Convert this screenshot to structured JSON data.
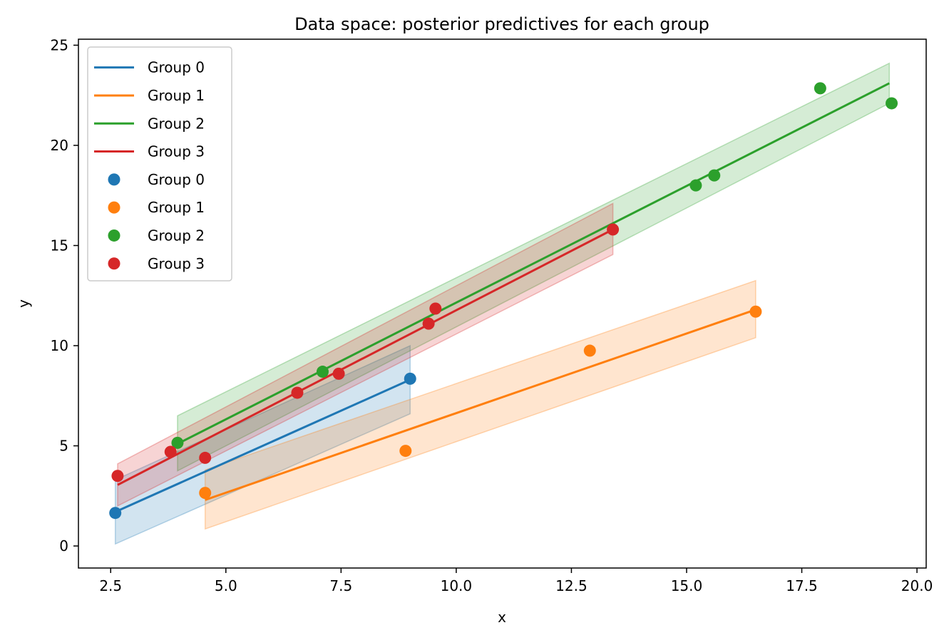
{
  "chart_data": {
    "type": "line",
    "title": "Data space: posterior predictives for each group",
    "xlabel": "x",
    "ylabel": "y",
    "xlim": [
      1.8,
      20.2
    ],
    "ylim": [
      -1.1,
      25.3
    ],
    "xticks": [
      "2.5",
      "5.0",
      "7.5",
      "10.0",
      "12.5",
      "15.0",
      "17.5",
      "20.0"
    ],
    "xtick_values": [
      2.5,
      5.0,
      7.5,
      10.0,
      12.5,
      15.0,
      17.5,
      20.0
    ],
    "yticks": [
      "0",
      "5",
      "10",
      "15",
      "20",
      "25"
    ],
    "ytick_values": [
      0,
      5,
      10,
      15,
      20,
      25
    ],
    "grid": false,
    "legend_position": "top-left",
    "legend": [
      "Group 0",
      "Group 1",
      "Group 2",
      "Group 3",
      "Group 0",
      "Group 1",
      "Group 2",
      "Group 3"
    ],
    "series": [
      {
        "name": "Group 0",
        "color": "#1f77b4",
        "line": {
          "x": [
            2.6,
            9.0
          ],
          "y": [
            1.7,
            8.3
          ]
        },
        "band": {
          "x": [
            2.6,
            9.0
          ],
          "lower": [
            0.1,
            6.6
          ],
          "upper": [
            3.3,
            10.0
          ]
        },
        "points": {
          "x": [
            2.6,
            9.0
          ],
          "y": [
            1.65,
            8.35
          ]
        }
      },
      {
        "name": "Group 1",
        "color": "#ff7f0e",
        "line": {
          "x": [
            4.55,
            16.5
          ],
          "y": [
            2.3,
            11.8
          ]
        },
        "band": {
          "x": [
            4.55,
            16.5
          ],
          "lower": [
            0.85,
            10.4
          ],
          "upper": [
            3.8,
            13.25
          ]
        },
        "points": {
          "x": [
            4.55,
            8.9,
            12.9,
            16.5
          ],
          "y": [
            2.65,
            4.75,
            9.75,
            11.7
          ]
        }
      },
      {
        "name": "Group 2",
        "color": "#2ca02c",
        "line": {
          "x": [
            3.95,
            19.4
          ],
          "y": [
            5.1,
            23.1
          ]
        },
        "band": {
          "x": [
            3.95,
            19.4
          ],
          "lower": [
            3.75,
            22.1
          ],
          "upper": [
            6.5,
            24.1
          ]
        },
        "points": {
          "x": [
            3.95,
            7.1,
            15.2,
            15.6,
            17.9,
            19.45
          ],
          "y": [
            5.15,
            8.7,
            18.0,
            18.5,
            22.85,
            22.1
          ]
        }
      },
      {
        "name": "Group 3",
        "color": "#d62728",
        "line": {
          "x": [
            2.65,
            13.4
          ],
          "y": [
            3.05,
            15.8
          ]
        },
        "band": {
          "x": [
            2.65,
            13.4
          ],
          "lower": [
            2.0,
            14.55
          ],
          "upper": [
            4.1,
            17.1
          ]
        },
        "points": {
          "x": [
            2.65,
            3.8,
            4.55,
            6.55,
            7.45,
            9.4,
            9.55,
            13.4
          ],
          "y": [
            3.5,
            4.7,
            4.4,
            7.65,
            8.6,
            11.1,
            11.85,
            15.8
          ]
        }
      }
    ]
  }
}
